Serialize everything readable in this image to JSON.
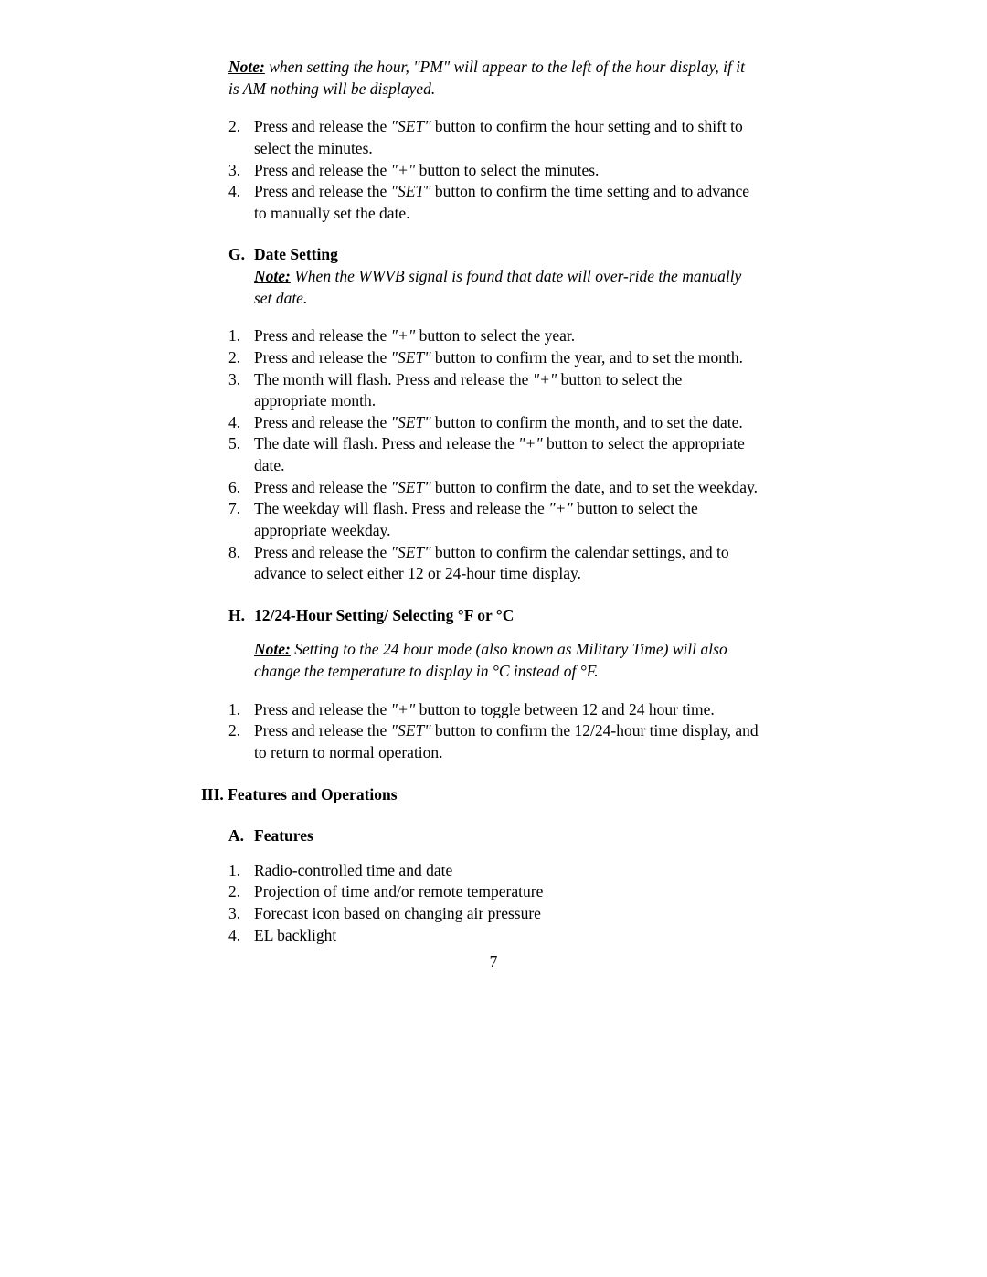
{
  "top_note": {
    "label": "Note:",
    "text": " when setting the hour, \"PM\" will appear to the left of the hour display, if it is AM nothing will be displayed."
  },
  "top_list": [
    {
      "n": "2.",
      "before": "Press and release the ",
      "quoted": "\"SET\"",
      "after": " button to confirm the hour setting and to shift to select the minutes."
    },
    {
      "n": "3.",
      "before": "Press and release the ",
      "quoted": "\"+\"",
      "after": " button to select the minutes."
    },
    {
      "n": "4.",
      "before": "Press and release the ",
      "quoted": "\"SET\"",
      "after": " button to confirm the time setting and to advance to manually set the date."
    }
  ],
  "section_g": {
    "letter": "G.",
    "title": "Date Setting",
    "note_label": "Note:",
    "note_text": " When the WWVB signal is found that date will over-ride the manually set date.",
    "items": [
      {
        "n": "1.",
        "before": "Press and release the ",
        "quoted": "\"+\"",
        "after": " button to select the year."
      },
      {
        "n": "2.",
        "before": "Press and release the ",
        "quoted": "\"SET\"",
        "after": " button to confirm the year, and to set the month."
      },
      {
        "n": "3.",
        "before": "The month will flash.  Press and release the ",
        "quoted": "\"+\"",
        "after": " button to select the appropriate month."
      },
      {
        "n": "4.",
        "before": "Press and release the ",
        "quoted": "\"SET\"",
        "after": " button to confirm the month, and to set the date."
      },
      {
        "n": "5.",
        "before": "The date will flash.  Press and release the ",
        "quoted": "\"+\"",
        "after": " button to select the appropriate date."
      },
      {
        "n": "6.",
        "before": "Press and release the ",
        "quoted": "\"SET\"",
        "after": " button to confirm the date, and to set the weekday."
      },
      {
        "n": "7.",
        "before": "The weekday will flash.  Press and release the ",
        "quoted": "\"+\"",
        "after": " button to select the appropriate weekday."
      },
      {
        "n": "8.",
        "before": "Press and release the ",
        "quoted": "\"SET\"",
        "after": " button to confirm the calendar settings, and to advance to select either 12 or 24-hour time display."
      }
    ]
  },
  "section_h": {
    "letter": "H.",
    "title": "12/24-Hour Setting/ Selecting °F or °C",
    "note_label": "Note:",
    "note_text": " Setting to the 24 hour mode (also known as Military Time) will also change the temperature to display in °C instead of °F.",
    "items": [
      {
        "n": "1.",
        "before": "Press and release the ",
        "quoted": "\"+\"",
        "after": " button to toggle between 12 and 24 hour time."
      },
      {
        "n": "2.",
        "before": "Press and release the ",
        "quoted": "\"SET\"",
        "after": " button to confirm the 12/24-hour time display, and to return to normal operation."
      }
    ]
  },
  "section_iii": {
    "roman": "III.",
    "title": "Features and Operations"
  },
  "section_a": {
    "letter": "A.",
    "title": "Features",
    "items": [
      {
        "n": "1.",
        "text": "Radio-controlled time and date"
      },
      {
        "n": "2.",
        "text": "Projection of time and/or remote temperature"
      },
      {
        "n": "3.",
        "text": "Forecast icon based on changing air pressure"
      },
      {
        "n": "4.",
        "text": "EL backlight"
      }
    ]
  },
  "page_number": "7"
}
